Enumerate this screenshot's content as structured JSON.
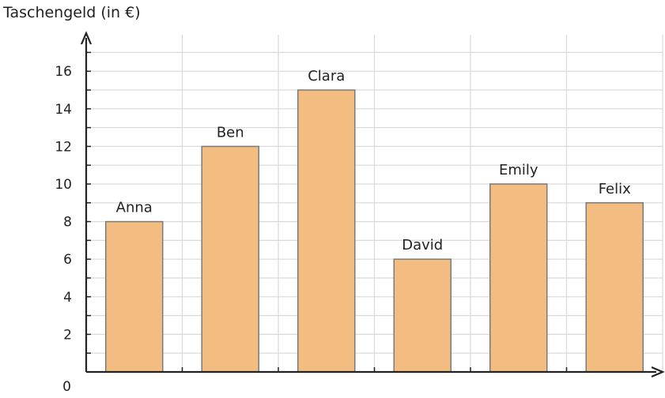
{
  "chart_data": {
    "type": "bar",
    "ylabel": "Taschengeld (in €)",
    "categories": [
      "Anna",
      "Ben",
      "Clara",
      "David",
      "Emily",
      "Felix"
    ],
    "values": [
      8,
      12,
      15,
      6,
      10,
      9
    ],
    "ylim": [
      0,
      18
    ],
    "yticks": [
      0,
      2,
      4,
      6,
      8,
      10,
      12,
      14,
      16
    ],
    "grid": true,
    "colors": {
      "bar": "#f3bd82",
      "bar_stroke": "#7a7a7a",
      "grid": "#d9d9d9",
      "axis": "#222222"
    }
  }
}
